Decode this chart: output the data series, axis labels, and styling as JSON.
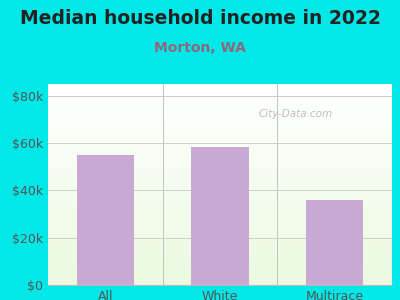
{
  "title": "Median household income in 2022",
  "subtitle": "Morton, WA",
  "categories": [
    "All",
    "White",
    "Multirace"
  ],
  "values": [
    55000,
    58500,
    36000
  ],
  "bar_color": "#c9a8d4",
  "background_color": "#00e8e8",
  "ylabel_ticks": [
    0,
    20000,
    40000,
    60000,
    80000
  ],
  "ylabel_labels": [
    "$0",
    "$20k",
    "$40k",
    "$60k",
    "$80k"
  ],
  "ylim": [
    0,
    85000
  ],
  "title_fontsize": 13.5,
  "subtitle_fontsize": 10,
  "subtitle_color": "#8a6a7a",
  "tick_color": "#555555",
  "watermark": "City-Data.com",
  "grid_color": "#cccccc",
  "separator_color": "#bbbbbb"
}
